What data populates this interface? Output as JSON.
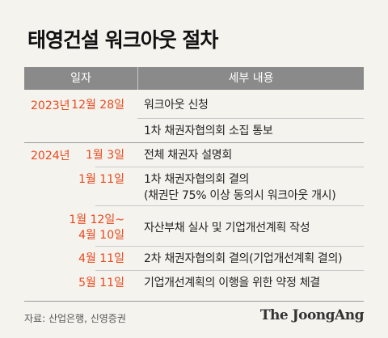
{
  "title": "태영건설 워크아웃 절차",
  "table": {
    "header_date": "일자",
    "header_detail": "세부 내용",
    "rows": [
      {
        "year": "2023년",
        "date": "12월 28일",
        "detail": "워크아웃 신청"
      },
      {
        "year": "",
        "date": "",
        "detail": "1차 채권자협의회 소집 통보"
      },
      {
        "year": "2024년",
        "date": "1월 3일",
        "detail": "전체 채권자 설명회"
      },
      {
        "year": "",
        "date": "1월 11일",
        "detail": "1차 채권자협의회 결의",
        "detail2": "(채권단 75% 이상 동의시 워크아웃 개시)"
      },
      {
        "year": "",
        "date": "1월 12일~",
        "date2": "4월 10일",
        "detail": "자산부채 실사 및 기업개선계획 작성"
      },
      {
        "year": "",
        "date": "4월 11일",
        "detail": "2차 채권자협의회 결의(기업개선계획 결의)"
      },
      {
        "year": "",
        "date": "5월 11일",
        "detail": "기업개선계획의 이행을 위한 약정 체결"
      }
    ]
  },
  "source": "자료: 산업은행, 신영증권",
  "brand": "The JoongAng",
  "colors": {
    "accent": "#e8491d",
    "header_bg": "#8a8a8a",
    "background": "#f5f3ee"
  }
}
